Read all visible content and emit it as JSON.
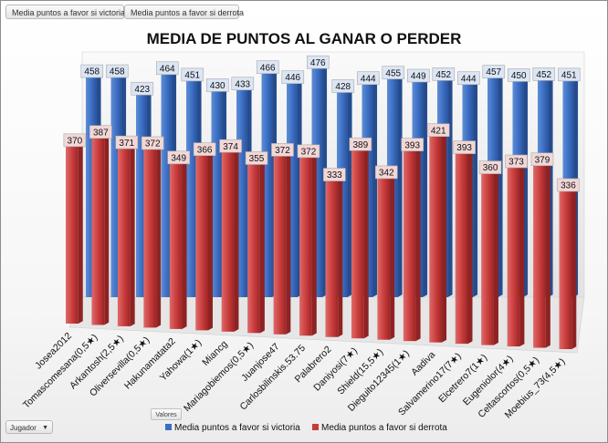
{
  "pivot": {
    "field_buttons": [
      "Media puntos a favor si victoria",
      "Media puntos a favor si derrota"
    ],
    "values_button": "Valores",
    "row_field": "Jugador",
    "dropdown_icon": "chevron-down-icon"
  },
  "colors": {
    "victoria": "#3c6fc4",
    "derrota": "#c83b3b",
    "victoria_label_bg": "#dbe5f4",
    "derrota_label_bg": "#f2d7d7"
  },
  "chart_data": {
    "type": "bar",
    "title": "MEDIA DE PUNTOS AL GANAR O PERDER",
    "xlabel": "",
    "ylabel": "",
    "ylim": [
      0,
      480
    ],
    "legend_position": "bottom",
    "categories": [
      "Josea2012",
      "Tomascomesana(0,5★)",
      "Arkantosh(2,5★)",
      "Oliversevilla(0,5★)",
      "Hakunamatata2",
      "Yahowa(1★)",
      "Miancg",
      "Mariagobiemos(0,5★)",
      "Juanjose47",
      "Carlosbilinskis.53.75",
      "Palabrero2",
      "Daniyosi(7★)",
      "Shield(15,5★)",
      "Dieguito12345(1★)",
      "Aadiva",
      "Salvamerino17(7★)",
      "Elcetrero7(1★)",
      "Eugeniolor(4★)",
      "Celtascortos(0,5★)",
      "Moebius_73(4,5★)"
    ],
    "series": [
      {
        "name": "Media puntos a favor si victoria",
        "values": [
          458,
          458,
          423,
          464,
          451,
          430,
          433,
          466,
          446,
          476,
          428,
          444,
          455,
          449,
          452,
          444,
          457,
          450,
          452,
          451
        ]
      },
      {
        "name": "Media puntos a favor si derrota",
        "values": [
          370,
          387,
          371,
          372,
          349,
          366,
          374,
          355,
          372,
          372,
          333,
          389,
          342,
          393,
          421,
          393,
          360,
          373,
          379,
          336
        ]
      }
    ]
  }
}
